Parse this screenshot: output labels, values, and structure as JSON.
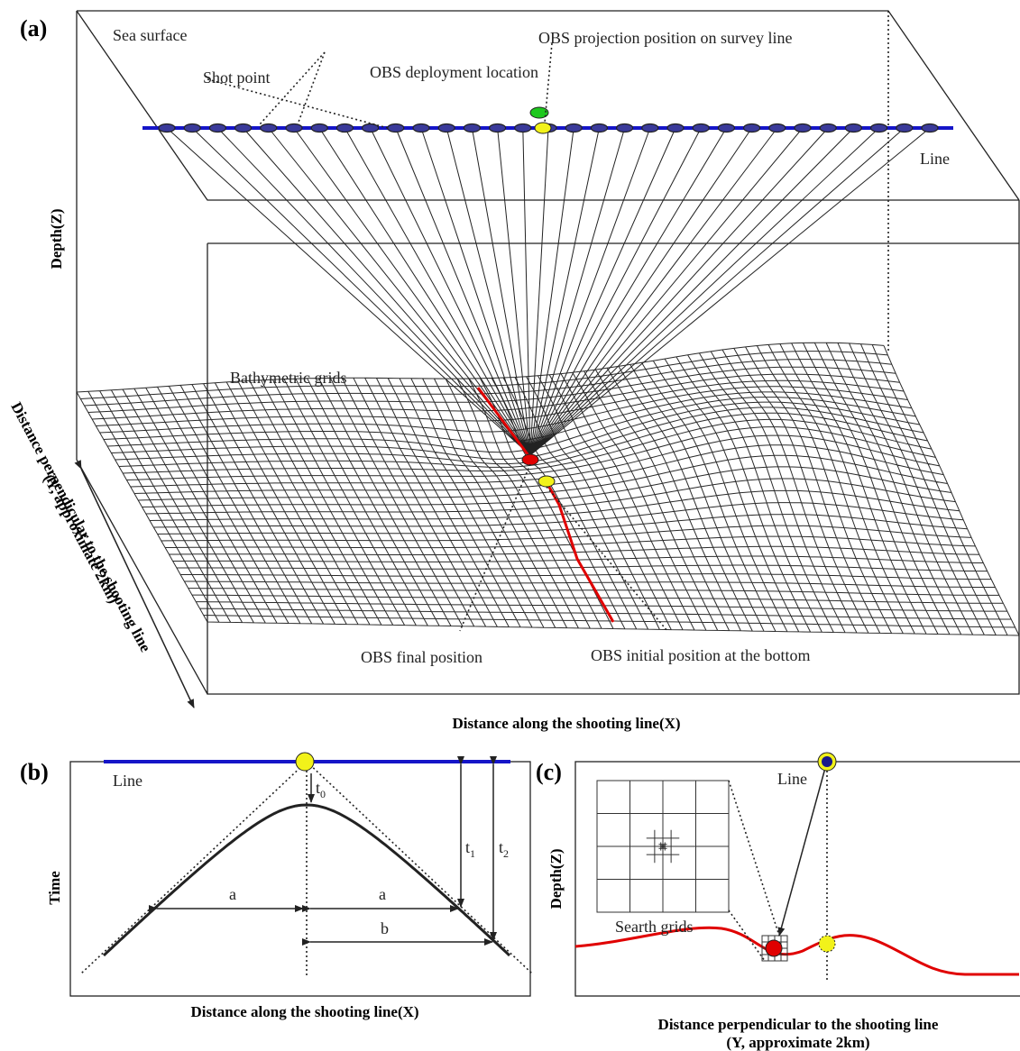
{
  "panel_a": {
    "label": "(a)",
    "sea_surface": "Sea surface",
    "obs_projection": "OBS projection position on survey line",
    "obs_deployment": "OBS deployment location",
    "shot_point": "Shot point",
    "line": "Line",
    "depth_axis": "Depth(Z)",
    "bathymetric_grids": "Bathymetric grids",
    "y_axis": [
      "Distance perpendicular to the shooting line",
      "(Y, approximate 2km)"
    ],
    "final_position": "OBS final position",
    "initial_position": "OBS initial position at the bottom",
    "x_axis": "Distance along the shooting line(X)"
  },
  "panel_b": {
    "label": "(b)",
    "line": "Line",
    "t0": {
      "base": "t",
      "sub": "0"
    },
    "t1": {
      "base": "t",
      "sub": "1"
    },
    "t2": {
      "base": "t",
      "sub": "2"
    },
    "a_left": "a",
    "a_right": "a",
    "b": "b",
    "y_axis": "Time",
    "x_axis": "Distance along the shooting line(X)"
  },
  "panel_c": {
    "label": "(c)",
    "line": "Line",
    "y_axis": "Depth(Z)",
    "search_grids": "Searth grids",
    "x_axis": [
      "Distance perpendicular to the shooting line",
      "(Y, approximate 2km)"
    ]
  }
}
